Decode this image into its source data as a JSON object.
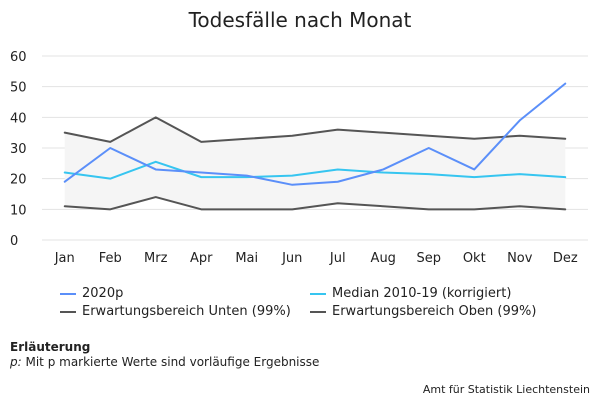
{
  "chart_data": {
    "type": "line",
    "title": "Todesfälle nach Monat",
    "xlabel": "",
    "ylabel": "",
    "categories": [
      "Jan",
      "Feb",
      "Mrz",
      "Apr",
      "Mai",
      "Jun",
      "Jul",
      "Aug",
      "Sep",
      "Okt",
      "Nov",
      "Dez"
    ],
    "ylim": [
      0,
      60
    ],
    "yticks": [
      0,
      10,
      20,
      30,
      40,
      50,
      60
    ],
    "grid": true,
    "legend_position": "bottom",
    "band": {
      "lower_series": 2,
      "upper_series": 3,
      "color": "#f5f5f5"
    },
    "series": [
      {
        "name": "2020p",
        "color": "#5b8ff9",
        "values": [
          19,
          30,
          23,
          22,
          21,
          18,
          19,
          23,
          30,
          23,
          39,
          51
        ]
      },
      {
        "name": "Median 2010-19 (korrigiert)",
        "color": "#36c5f0",
        "values": [
          22,
          20,
          25.5,
          20.5,
          20.5,
          21,
          23,
          22,
          21.5,
          20.5,
          21.5,
          20.5
        ]
      },
      {
        "name": "Erwartungsbereich Unten (99%)",
        "color": "#555555",
        "values": [
          11,
          10,
          14,
          10,
          10,
          10,
          12,
          11,
          10,
          10,
          11,
          10
        ]
      },
      {
        "name": "Erwartungsbereich Oben (99%)",
        "color": "#555555",
        "values": [
          35,
          32,
          40,
          32,
          33,
          34,
          36,
          35,
          34,
          33,
          34,
          33
        ]
      }
    ]
  },
  "note": {
    "title": "Erläuterung",
    "marker": "p:",
    "text": " Mit p markierte Werte sind vorläufige Ergebnisse"
  },
  "source": "Amt für Statistik Liechtenstein"
}
